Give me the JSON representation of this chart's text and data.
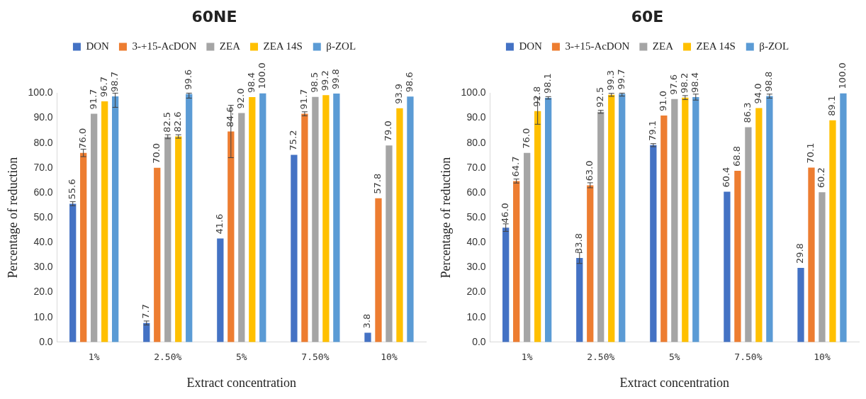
{
  "chart_data": [
    {
      "type": "bar",
      "title": "60NE",
      "xlabel": "Extract concentration",
      "ylabel": "Percentage of reduction",
      "categories": [
        "1%",
        "2.50%",
        "5%",
        "7.50%",
        "10%"
      ],
      "series": [
        {
          "name": "DON",
          "color": "#4472c4",
          "values": [
            55.6,
            7.7,
            41.6,
            75.2,
            3.8
          ],
          "value_labels": [
            "55.6",
            "7.7",
            "41.6",
            "75.2",
            "3.8"
          ],
          "errors": [
            0.8,
            0.8,
            null,
            null,
            null
          ]
        },
        {
          "name": "3-+15-AcDON",
          "color": "#ed7d31",
          "values": [
            76,
            70,
            84.6,
            91.7,
            57.8
          ],
          "value_labels": [
            "76.0",
            "70.0",
            "84.6",
            "91.7",
            "57.8"
          ],
          "errors": [
            1.5,
            null,
            10.5,
            0.8,
            null
          ]
        },
        {
          "name": "ZEA",
          "color": "#a5a5a5",
          "values": [
            91.7,
            82.5,
            92,
            98.5,
            79
          ],
          "value_labels": [
            "91.7",
            "82.5",
            "92.0",
            "98.5",
            "79.0"
          ],
          "errors": [
            null,
            0.8,
            null,
            null,
            null
          ]
        },
        {
          "name": "ZEA 14S",
          "color": "#ffc000",
          "values": [
            96.7,
            82.6,
            98.4,
            99.2,
            93.9
          ],
          "value_labels": [
            "96.7",
            "82.6",
            "98.4",
            "99.2",
            "93.9"
          ],
          "errors": [
            null,
            0.7,
            null,
            null,
            null
          ]
        },
        {
          "name": "β-ZOL",
          "color": "#5b9bd5",
          "values": [
            98.7,
            99.6,
            100,
            99.8,
            98.6
          ],
          "value_labels": [
            "98.7",
            "99.6",
            "100.0",
            "99.8",
            "98.6"
          ],
          "errors": [
            [
              94.3,
              100
            ],
            [
              98.0,
              100
            ],
            null,
            null,
            null
          ]
        }
      ],
      "ylim": [
        0,
        100
      ],
      "yticks": [
        {
          "value": 0,
          "label": "0.0"
        },
        {
          "value": 10,
          "label": "10.0"
        },
        {
          "value": 20,
          "label": "20.0"
        },
        {
          "value": 30,
          "label": "30.0"
        },
        {
          "value": 40,
          "label": "40.0"
        },
        {
          "value": 50,
          "label": "50.0"
        },
        {
          "value": 60,
          "label": "60.0"
        },
        {
          "value": 70,
          "label": "70.0"
        },
        {
          "value": 80,
          "label": "80.0"
        },
        {
          "value": 90,
          "label": "90.0"
        },
        {
          "value": 100,
          "label": "100.0"
        }
      ],
      "legend": "top",
      "grid": false
    },
    {
      "type": "bar",
      "title": "60E",
      "xlabel": "Extract concentration",
      "ylabel": "Percentage of reduction",
      "categories": [
        "1%",
        "2.50%",
        "5%",
        "7.50%",
        "10%"
      ],
      "series": [
        {
          "name": "DON",
          "color": "#4472c4",
          "values": [
            46,
            33.8,
            79.1,
            60.4,
            29.8
          ],
          "value_labels": [
            "46.0",
            "33.8",
            "79.1",
            "60.4",
            "29.8"
          ],
          "errors": [
            1.5,
            2.2,
            0.6,
            null,
            null
          ]
        },
        {
          "name": "3-+15-AcDON",
          "color": "#ed7d31",
          "values": [
            64.7,
            63,
            91,
            68.8,
            70.1
          ],
          "value_labels": [
            "64.7",
            "63.0",
            "91.0",
            "68.8",
            "70.1"
          ],
          "errors": [
            0.8,
            1.0,
            null,
            null,
            null
          ]
        },
        {
          "name": "ZEA",
          "color": "#a5a5a5",
          "values": [
            76,
            92.5,
            97.6,
            86.3,
            60.2
          ],
          "value_labels": [
            "76.0",
            "92.5",
            "97.6",
            "86.3",
            "60.2"
          ],
          "errors": [
            null,
            0.6,
            null,
            null,
            null
          ]
        },
        {
          "name": "ZEA 14S",
          "color": "#ffc000",
          "values": [
            92.8,
            99.3,
            98.2,
            94,
            89.1
          ],
          "value_labels": [
            "92.8",
            "99.3",
            "98.2",
            "94.0",
            "89.1"
          ],
          "errors": [
            5.3,
            0.6,
            0.8,
            null,
            null
          ]
        },
        {
          "name": "β-ZOL",
          "color": "#5b9bd5",
          "values": [
            98.1,
            99.7,
            98.4,
            98.8,
            100
          ],
          "value_labels": [
            "98.1",
            "99.7",
            "98.4",
            "98.8",
            "100.0"
          ],
          "errors": [
            0.5,
            [
              98.8,
              100
            ],
            [
              97.2,
              99.6
            ],
            0.8,
            null
          ]
        }
      ],
      "ylim": [
        0,
        100
      ],
      "yticks": [
        {
          "value": 0,
          "label": "0.0"
        },
        {
          "value": 10,
          "label": "10.0"
        },
        {
          "value": 20,
          "label": "20.0"
        },
        {
          "value": 30,
          "label": "30.0"
        },
        {
          "value": 40,
          "label": "40.0"
        },
        {
          "value": 50,
          "label": "50.0"
        },
        {
          "value": 60,
          "label": "60.0"
        },
        {
          "value": 70,
          "label": "70.0"
        },
        {
          "value": 80,
          "label": "80.0"
        },
        {
          "value": 90,
          "label": "90.0"
        },
        {
          "value": 100,
          "label": "100.0"
        }
      ],
      "legend": "top",
      "grid": false
    }
  ]
}
